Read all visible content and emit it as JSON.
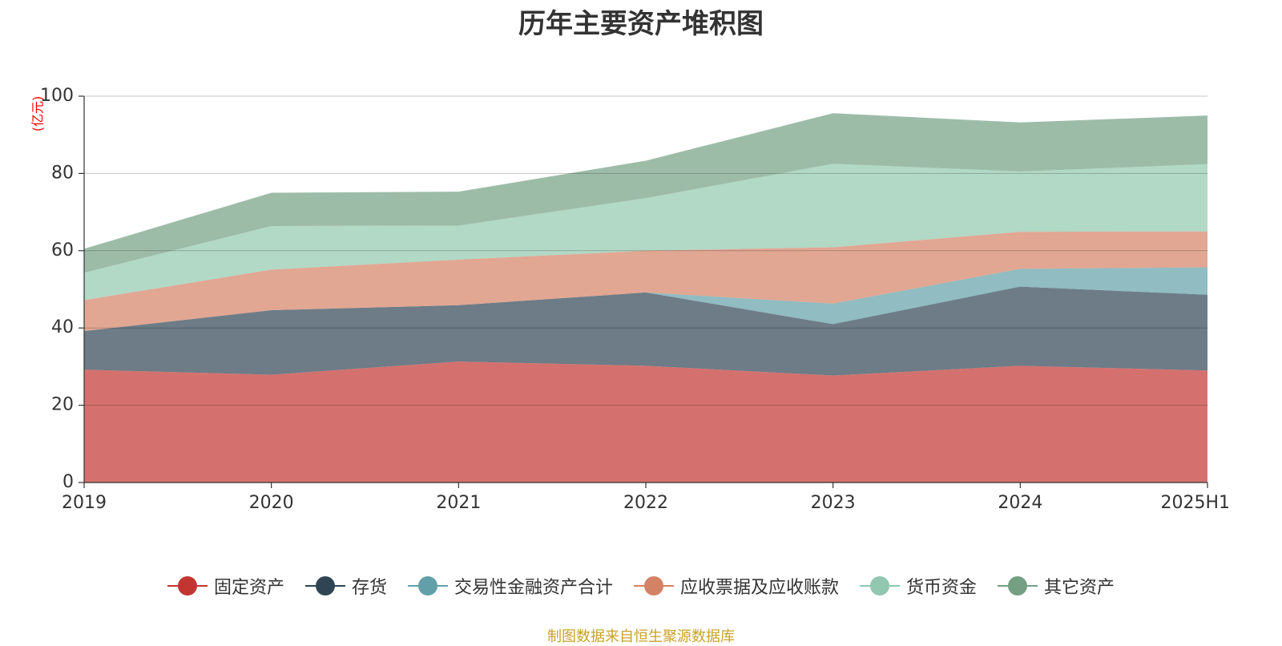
{
  "chart_data": {
    "type": "area",
    "stacked": true,
    "title": "历年主要资产堆积图",
    "unit_label": "(亿元)",
    "categories": [
      "2019",
      "2020",
      "2021",
      "2022",
      "2023",
      "2024",
      "2025H1"
    ],
    "ylim": [
      0,
      100
    ],
    "yticks": [
      0,
      20,
      40,
      60,
      80,
      100
    ],
    "grid": true,
    "legend_position": "bottom",
    "series": [
      {
        "name": "固定资产",
        "color": "#c23531",
        "values": [
          29.2,
          27.9,
          31.3,
          30.2,
          27.7,
          30.2,
          29.0
        ]
      },
      {
        "name": "存货",
        "color": "#2f4554",
        "values": [
          10.0,
          16.7,
          14.6,
          19.0,
          13.3,
          20.5,
          19.6
        ]
      },
      {
        "name": "交易性金融资产合计",
        "color": "#61a0a8",
        "values": [
          0,
          0,
          0,
          0,
          5.3,
          4.6,
          7.1
        ]
      },
      {
        "name": "应收票据及应收账款",
        "color": "#d48265",
        "values": [
          8.0,
          10.5,
          11.8,
          10.8,
          14.6,
          9.6,
          9.3
        ]
      },
      {
        "name": "货币资金",
        "color": "#91c7ae",
        "values": [
          7.1,
          11.3,
          8.8,
          13.6,
          21.6,
          15.6,
          17.4
        ]
      },
      {
        "name": "其它资产",
        "color": "#749f83",
        "values": [
          6.2,
          8.6,
          8.8,
          9.7,
          13.1,
          12.7,
          12.6
        ]
      }
    ]
  },
  "source_note": "制图数据来自恒生聚源数据库"
}
